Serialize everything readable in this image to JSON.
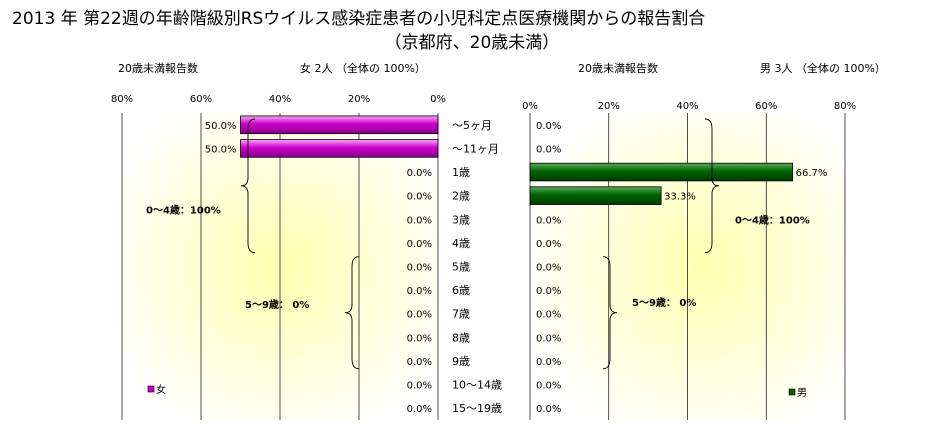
{
  "title": "2013 年 第22週の年齢階級別RSウイルス感染症患者の小児科定点医療機関からの報告割合",
  "subtitle": "（京都府、20歳未満）",
  "headers": {
    "left_label": "20歳未満報告数",
    "left_info": "女  2人 （全体の  100%）",
    "right_label": "20歳未満報告数",
    "right_info": "男  3人 （全体の  100%）"
  },
  "colors": {
    "female": "#CC00CC",
    "male": "#006600"
  },
  "chart_data": [
    {
      "type": "bar",
      "orientation": "horizontal",
      "direction": "right-to-left",
      "categories": [
        "～5ヶ月",
        "～11ヶ月",
        "1歳",
        "2歳",
        "3歳",
        "4歳",
        "5歳",
        "6歳",
        "7歳",
        "8歳",
        "9歳",
        "10～14歳",
        "15～19歳"
      ],
      "series": [
        {
          "name": "女",
          "values": [
            50.0,
            50.0,
            0,
            0,
            0,
            0,
            0,
            0,
            0,
            0,
            0,
            0,
            0
          ]
        }
      ],
      "value_labels": [
        "50.0%",
        "50.0%",
        "0.0%",
        "0.0%",
        "0.0%",
        "0.0%",
        "0.0%",
        "0.0%",
        "0.0%",
        "0.0%",
        "0.0%",
        "0.0%",
        "0.0%"
      ],
      "xlim": [
        0,
        80
      ],
      "ticks": [
        "0%",
        "20%",
        "40%",
        "60%",
        "80%"
      ],
      "annotations": [
        "0～4歳：100%",
        "5～9歳：  0%"
      ],
      "legend": "bottom-left"
    },
    {
      "type": "bar",
      "orientation": "horizontal",
      "direction": "left-to-right",
      "categories": [
        "～5ヶ月",
        "～11ヶ月",
        "1歳",
        "2歳",
        "3歳",
        "4歳",
        "5歳",
        "6歳",
        "7歳",
        "8歳",
        "9歳",
        "10～14歳",
        "15～19歳"
      ],
      "series": [
        {
          "name": "男",
          "values": [
            0,
            0,
            66.7,
            33.3,
            0,
            0,
            0,
            0,
            0,
            0,
            0,
            0,
            0
          ]
        }
      ],
      "value_labels": [
        "0.0%",
        "0.0%",
        "66.7%",
        "33.3%",
        "0.0%",
        "0.0%",
        "0.0%",
        "0.0%",
        "0.0%",
        "0.0%",
        "0.0%",
        "0.0%",
        "0.0%"
      ],
      "xlim": [
        0,
        80
      ],
      "ticks": [
        "0%",
        "20%",
        "40%",
        "60%",
        "80%"
      ],
      "annotations": [
        "0～4歳：100%",
        "5～9歳：  0%"
      ],
      "legend": "bottom-right"
    }
  ]
}
